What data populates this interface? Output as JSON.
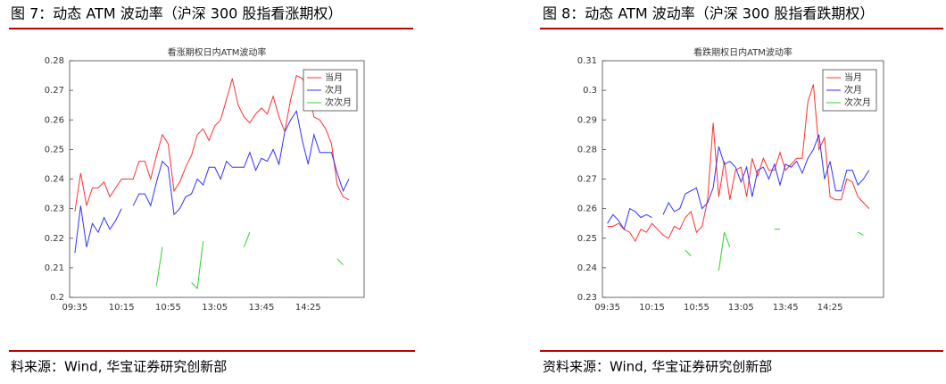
{
  "headings": [
    "图 7：动态 ATM 波动率（沪深 300 股指看涨期权）",
    "图 8：动态 ATM 波动率（沪深 300 股指看跌期权）"
  ],
  "sources": [
    "料来源：Wind, 华宝证券研究创新部",
    "资料来源：Wind, 华宝证券研究创新部"
  ],
  "chart_data": [
    {
      "type": "line",
      "title": "看涨期权日内ATM波动率",
      "legend": "upper right",
      "categories": [
        "09:35",
        null,
        null,
        null,
        null,
        null,
        null,
        null,
        "10:15",
        null,
        null,
        null,
        null,
        null,
        null,
        null,
        "10:55",
        null,
        null,
        null,
        null,
        null,
        null,
        null,
        "13:05",
        null,
        null,
        null,
        null,
        null,
        null,
        null,
        "13:45",
        null,
        null,
        null,
        null,
        null,
        null,
        null,
        "14:25",
        null,
        null,
        null,
        null,
        null,
        null,
        null
      ],
      "ylim": [
        0.2,
        0.28
      ],
      "yticks": [
        0.2,
        0.21,
        0.22,
        0.23,
        0.24,
        0.25,
        0.26,
        0.27,
        0.28
      ],
      "series": [
        {
          "name": "当月",
          "color": "#ff3030",
          "values": [
            0.229,
            0.242,
            0.231,
            0.237,
            0.237,
            0.239,
            0.234,
            0.237,
            0.24,
            0.24,
            0.24,
            0.246,
            0.246,
            0.24,
            0.248,
            0.255,
            0.252,
            0.236,
            0.239,
            0.244,
            0.248,
            0.255,
            0.257,
            0.253,
            0.258,
            0.26,
            0.267,
            0.274,
            0.265,
            0.261,
            0.259,
            0.262,
            0.264,
            0.262,
            0.268,
            0.261,
            0.256,
            0.267,
            0.275,
            0.274,
            0.27,
            0.261,
            0.26,
            0.257,
            0.252,
            0.238,
            0.234,
            0.233
          ]
        },
        {
          "name": "次月",
          "color": "#3030ff",
          "values": [
            0.215,
            0.231,
            0.217,
            0.225,
            0.222,
            0.227,
            0.223,
            0.226,
            0.23,
            null,
            0.231,
            0.235,
            0.235,
            0.231,
            0.239,
            0.246,
            0.244,
            0.228,
            0.23,
            0.234,
            0.235,
            0.24,
            0.238,
            0.244,
            0.244,
            0.24,
            0.246,
            0.244,
            0.244,
            0.244,
            0.249,
            0.243,
            0.247,
            0.246,
            0.25,
            0.245,
            0.256,
            0.26,
            0.263,
            0.253,
            0.245,
            0.255,
            0.249,
            0.249,
            0.249,
            0.242,
            0.236,
            0.24
          ]
        },
        {
          "name": "次次月",
          "color": "#30d030",
          "values": [
            null,
            null,
            null,
            null,
            null,
            null,
            null,
            null,
            null,
            null,
            null,
            null,
            null,
            null,
            0.204,
            0.217,
            null,
            null,
            null,
            null,
            0.205,
            0.203,
            0.219,
            null,
            null,
            null,
            null,
            null,
            null,
            0.217,
            0.222,
            null,
            null,
            null,
            null,
            null,
            null,
            null,
            null,
            null,
            null,
            null,
            null,
            null,
            null,
            0.213,
            0.211,
            null
          ]
        }
      ]
    },
    {
      "type": "line",
      "title": "看跌期权日内ATM波动率",
      "legend": "upper right",
      "categories": [
        "09:35",
        null,
        null,
        null,
        null,
        null,
        null,
        null,
        "10:15",
        null,
        null,
        null,
        null,
        null,
        null,
        null,
        "10:55",
        null,
        null,
        null,
        null,
        null,
        null,
        null,
        "13:05",
        null,
        null,
        null,
        null,
        null,
        null,
        null,
        "13:45",
        null,
        null,
        null,
        null,
        null,
        null,
        null,
        "14:25",
        null,
        null,
        null,
        null,
        null,
        null,
        null
      ],
      "ylim": [
        0.23,
        0.31
      ],
      "yticks": [
        0.23,
        0.24,
        0.25,
        0.26,
        0.27,
        0.28,
        0.29,
        0.3,
        0.31
      ],
      "series": [
        {
          "name": "当月",
          "color": "#ff3030",
          "values": [
            0.254,
            0.254,
            0.255,
            0.253,
            0.252,
            0.249,
            0.253,
            0.252,
            0.255,
            0.253,
            0.251,
            0.25,
            0.254,
            0.253,
            0.257,
            0.259,
            0.252,
            0.254,
            0.263,
            0.289,
            0.264,
            0.276,
            0.263,
            0.273,
            0.274,
            0.264,
            0.277,
            0.271,
            0.277,
            0.273,
            0.273,
            0.279,
            0.273,
            0.275,
            0.277,
            0.277,
            0.296,
            0.302,
            0.28,
            0.284,
            0.264,
            0.263,
            0.263,
            0.27,
            0.269,
            0.264,
            0.262,
            0.26
          ]
        },
        {
          "name": "次月",
          "color": "#3030ff",
          "values": [
            0.255,
            0.258,
            0.256,
            0.253,
            0.26,
            0.259,
            0.257,
            0.258,
            0.257,
            null,
            0.258,
            0.262,
            0.259,
            0.26,
            0.265,
            0.266,
            0.267,
            0.26,
            0.262,
            0.267,
            0.281,
            0.275,
            0.276,
            0.274,
            0.269,
            0.274,
            0.264,
            0.273,
            0.274,
            0.27,
            0.275,
            0.268,
            0.275,
            0.274,
            0.276,
            0.272,
            0.277,
            0.28,
            0.285,
            0.27,
            0.276,
            0.266,
            0.266,
            0.273,
            0.273,
            0.268,
            0.27,
            0.273
          ]
        },
        {
          "name": "次次月",
          "color": "#30d030",
          "values": [
            null,
            null,
            null,
            null,
            null,
            null,
            null,
            null,
            null,
            null,
            null,
            null,
            null,
            null,
            0.246,
            0.244,
            null,
            null,
            null,
            null,
            0.239,
            0.252,
            0.247,
            null,
            null,
            null,
            null,
            null,
            null,
            null,
            0.253,
            0.253,
            null,
            null,
            null,
            null,
            null,
            null,
            null,
            null,
            null,
            null,
            null,
            null,
            null,
            0.252,
            0.251,
            null
          ]
        }
      ]
    }
  ]
}
